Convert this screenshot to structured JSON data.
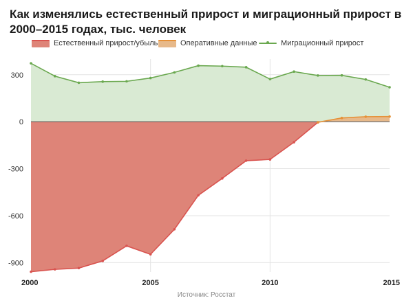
{
  "chart_data": {
    "type": "area",
    "title": "Как изменялись естественный прирост и миграционный прирост в 2000–2015 годах, тыс. человек",
    "xlabel": "",
    "ylabel": "",
    "x_ticks": [
      2000,
      2005,
      2010,
      2015
    ],
    "y_ticks": [
      300,
      0,
      -300,
      -600,
      -900
    ],
    "xlim": [
      2000,
      2015
    ],
    "ylim": [
      -960,
      400
    ],
    "grid": true,
    "legend_position": "top",
    "series": [
      {
        "name": "Естественный прирост/убыль",
        "color": "#d9534f",
        "fill": "#de8478",
        "x": [
          2000,
          2001,
          2002,
          2003,
          2004,
          2005,
          2006,
          2007,
          2008,
          2009,
          2010,
          2011,
          2012
        ],
        "values": [
          -958,
          -943,
          -935,
          -889,
          -793,
          -847,
          -687,
          -470,
          -362,
          -249,
          -241,
          -131,
          -4
        ]
      },
      {
        "name": "Оперативные данные",
        "color": "#e69138",
        "fill": "#e7b98a",
        "x": [
          2012,
          2013,
          2014,
          2015
        ],
        "values": [
          -4,
          24,
          32,
          33
        ]
      },
      {
        "name": "Миграционный прирост",
        "color": "#6aa84f",
        "fill": "#d9ead3",
        "x": [
          2000,
          2001,
          2002,
          2003,
          2004,
          2005,
          2006,
          2007,
          2008,
          2009,
          2010,
          2011,
          2012,
          2013,
          2014,
          2015
        ],
        "values": [
          373,
          291,
          249,
          256,
          258,
          279,
          315,
          358,
          355,
          348,
          272,
          320,
          295,
          296,
          270,
          220
        ]
      }
    ]
  },
  "source": "Источник: Росстат"
}
